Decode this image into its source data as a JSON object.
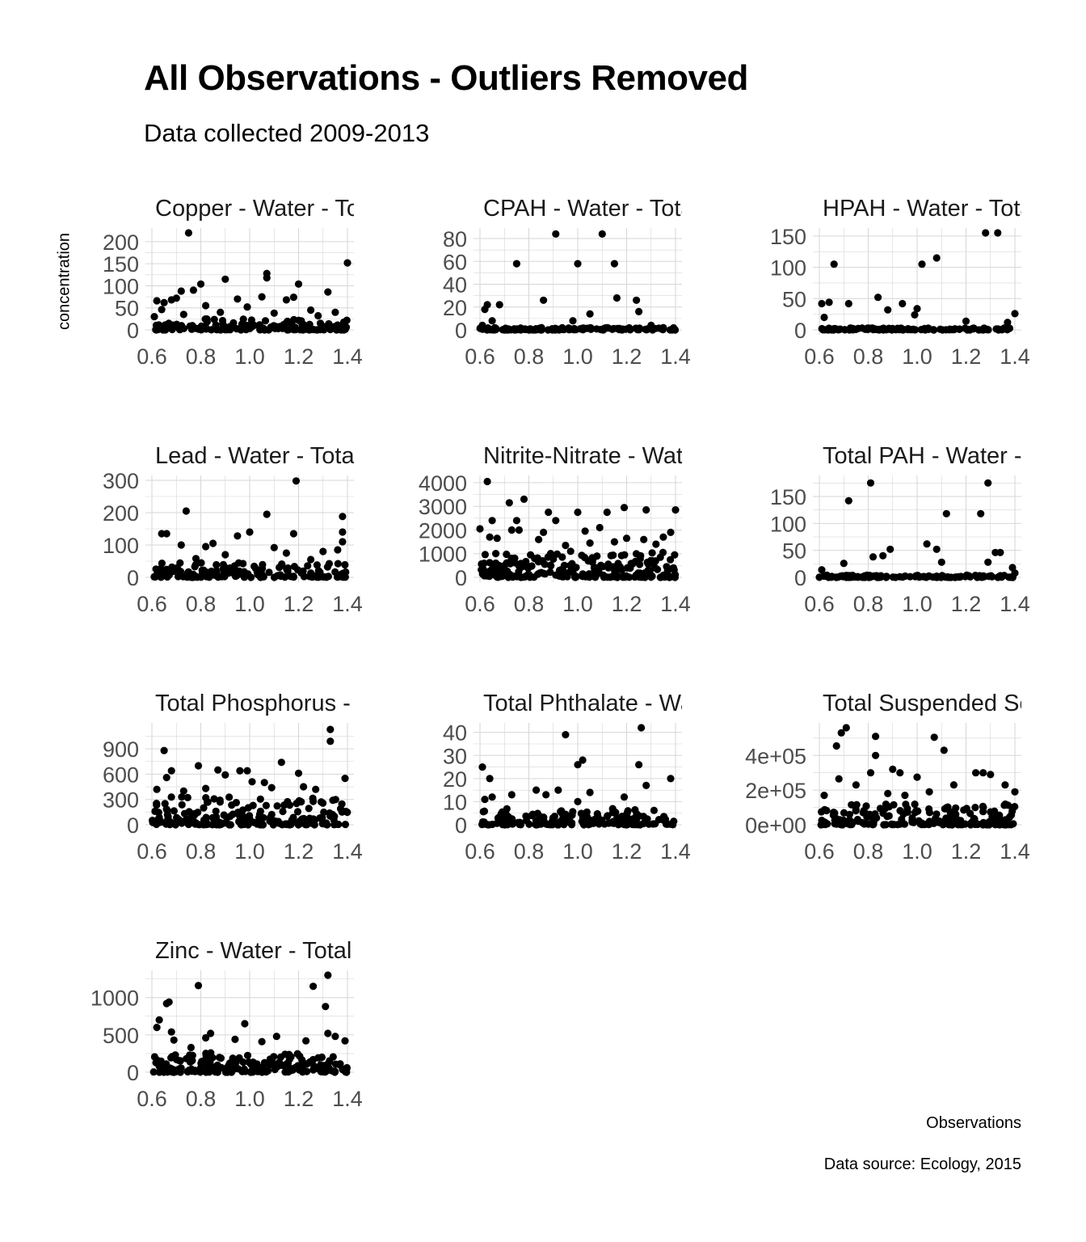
{
  "title": "All Observations - Outliers Removed",
  "subtitle": "Data collected 2009-2013",
  "caption": "Data source: Ecology, 2015",
  "chart_data": {
    "type": "scatter",
    "layout": "faceted 3-column grid",
    "xlabel": "Observations",
    "ylabel": "concentration",
    "grid": true,
    "point_color": "#000000",
    "grid_color": "#d6d6d6",
    "x_ticks": [
      "0.6",
      "0.8",
      "1.0",
      "1.2",
      "1.4"
    ],
    "xlim": [
      0.6,
      1.4
    ],
    "facets": [
      {
        "strip": "Copper - Water - Tot",
        "ylim": [
          0,
          220
        ],
        "y_ticks": [
          0,
          50,
          100,
          150,
          200
        ],
        "y_tick_labels": [
          "0",
          "50",
          "100",
          "150",
          "200"
        ],
        "points": [
          [
            0.75,
            220
          ],
          [
            1.4,
            152
          ],
          [
            1.07,
            128
          ],
          [
            1.07,
            118
          ],
          [
            0.9,
            115
          ],
          [
            0.8,
            104
          ],
          [
            1.2,
            104
          ],
          [
            1.32,
            86
          ],
          [
            0.72,
            88
          ],
          [
            0.77,
            90
          ],
          [
            0.62,
            66
          ],
          [
            0.65,
            62
          ],
          [
            0.68,
            68
          ],
          [
            0.7,
            72
          ],
          [
            0.82,
            55
          ],
          [
            0.95,
            70
          ],
          [
            1.05,
            75
          ],
          [
            1.15,
            68
          ],
          [
            1.18,
            74
          ],
          [
            0.64,
            46
          ],
          [
            0.88,
            40
          ],
          [
            0.99,
            52
          ],
          [
            1.25,
            45
          ],
          [
            1.35,
            40
          ],
          [
            0.61,
            30
          ],
          [
            0.73,
            35
          ],
          [
            1.1,
            38
          ],
          [
            1.28,
            32
          ]
        ],
        "base_max": 25,
        "base_n": 140,
        "seed": 11
      },
      {
        "strip": "CPAH - Water - Tota",
        "ylim": [
          0,
          85
        ],
        "y_ticks": [
          0,
          20,
          40,
          60,
          80
        ],
        "y_tick_labels": [
          "0",
          "20",
          "40",
          "60",
          "80"
        ],
        "points": [
          [
            0.91,
            84
          ],
          [
            1.1,
            84
          ],
          [
            0.75,
            58
          ],
          [
            1.0,
            58
          ],
          [
            1.15,
            58
          ],
          [
            1.24,
            26
          ],
          [
            1.25,
            16
          ],
          [
            1.16,
            28
          ],
          [
            0.86,
            26
          ],
          [
            0.62,
            18
          ],
          [
            0.63,
            22
          ],
          [
            0.68,
            22
          ],
          [
            0.65,
            8
          ],
          [
            0.61,
            4
          ],
          [
            0.98,
            8
          ],
          [
            1.05,
            14
          ],
          [
            1.3,
            4
          ],
          [
            1.35,
            2
          ]
        ],
        "base_max": 2,
        "base_n": 120,
        "seed": 23
      },
      {
        "strip": "HPAH - Water - Tota",
        "ylim": [
          0,
          155
        ],
        "y_ticks": [
          0,
          50,
          100,
          150
        ],
        "y_tick_labels": [
          "0",
          "50",
          "100",
          "150"
        ],
        "points": [
          [
            1.28,
            155
          ],
          [
            1.33,
            155
          ],
          [
            1.08,
            115
          ],
          [
            1.02,
            105
          ],
          [
            0.66,
            105
          ],
          [
            0.61,
            42
          ],
          [
            0.64,
            44
          ],
          [
            0.72,
            42
          ],
          [
            0.84,
            52
          ],
          [
            0.94,
            42
          ],
          [
            0.99,
            24
          ],
          [
            1.0,
            34
          ],
          [
            0.88,
            32
          ],
          [
            0.62,
            20
          ],
          [
            1.4,
            26
          ],
          [
            1.37,
            12
          ],
          [
            1.2,
            14
          ]
        ],
        "base_max": 3,
        "base_n": 120,
        "seed": 37
      },
      {
        "strip": "Lead - Water - Total",
        "ylim": [
          0,
          300
        ],
        "y_ticks": [
          0,
          100,
          200,
          300
        ],
        "y_tick_labels": [
          "0",
          "100",
          "200",
          "300"
        ],
        "points": [
          [
            1.19,
            298
          ],
          [
            0.74,
            205
          ],
          [
            1.07,
            195
          ],
          [
            1.38,
            188
          ],
          [
            0.64,
            135
          ],
          [
            0.66,
            135
          ],
          [
            1.18,
            135
          ],
          [
            1.38,
            140
          ],
          [
            1.38,
            110
          ],
          [
            0.95,
            128
          ],
          [
            1.0,
            140
          ],
          [
            0.82,
            95
          ],
          [
            0.85,
            105
          ],
          [
            1.1,
            92
          ],
          [
            0.72,
            100
          ],
          [
            1.3,
            80
          ],
          [
            1.36,
            85
          ],
          [
            0.9,
            70
          ],
          [
            1.15,
            75
          ],
          [
            0.78,
            58
          ],
          [
            1.25,
            55
          ]
        ],
        "base_max": 45,
        "base_n": 150,
        "seed": 41
      },
      {
        "strip": "Nitrite-Nitrate - Wate",
        "ylim": [
          0,
          4100
        ],
        "y_ticks": [
          0,
          1000,
          2000,
          3000,
          4000
        ],
        "y_tick_labels": [
          "0",
          "1000",
          "2000",
          "3000",
          "4000"
        ],
        "points": [
          [
            0.63,
            4050
          ],
          [
            0.78,
            3300
          ],
          [
            0.72,
            3150
          ],
          [
            1.19,
            2950
          ],
          [
            1.28,
            2850
          ],
          [
            1.4,
            2850
          ],
          [
            0.88,
            2750
          ],
          [
            1.0,
            2750
          ],
          [
            1.12,
            2750
          ],
          [
            0.65,
            2400
          ],
          [
            0.75,
            2400
          ],
          [
            0.91,
            2400
          ],
          [
            0.6,
            2050
          ],
          [
            0.73,
            2000
          ],
          [
            0.76,
            2000
          ],
          [
            0.86,
            1900
          ],
          [
            1.03,
            1950
          ],
          [
            1.09,
            2100
          ],
          [
            1.2,
            1650
          ],
          [
            1.27,
            1600
          ],
          [
            1.35,
            1700
          ],
          [
            1.38,
            1900
          ],
          [
            0.64,
            1700
          ],
          [
            0.67,
            1650
          ],
          [
            0.84,
            1600
          ],
          [
            0.95,
            1350
          ],
          [
            1.05,
            1450
          ],
          [
            1.15,
            1500
          ],
          [
            1.32,
            1400
          ]
        ],
        "base_max": 1100,
        "base_n": 220,
        "seed": 53
      },
      {
        "strip": "Total PAH - Water - ",
        "ylim": [
          0,
          180
        ],
        "y_ticks": [
          0,
          50,
          100,
          150
        ],
        "y_tick_labels": [
          "0",
          "50",
          "100",
          "150"
        ],
        "points": [
          [
            0.81,
            175
          ],
          [
            1.29,
            175
          ],
          [
            0.72,
            142
          ],
          [
            1.12,
            118
          ],
          [
            1.26,
            118
          ],
          [
            1.04,
            62
          ],
          [
            1.08,
            52
          ],
          [
            0.89,
            52
          ],
          [
            0.82,
            38
          ],
          [
            0.86,
            40
          ],
          [
            1.32,
            46
          ],
          [
            1.34,
            46
          ],
          [
            1.29,
            28
          ],
          [
            1.1,
            28
          ],
          [
            0.7,
            26
          ],
          [
            0.61,
            14
          ],
          [
            1.39,
            18
          ],
          [
            1.4,
            8
          ]
        ],
        "base_max": 4,
        "base_n": 120,
        "seed": 67
      },
      {
        "strip": "Total Phosphorus - W",
        "ylim": [
          0,
          1150
        ],
        "y_ticks": [
          0,
          300,
          600,
          900
        ],
        "y_tick_labels": [
          "0",
          "300",
          "600",
          "900"
        ],
        "points": [
          [
            1.33,
            1130
          ],
          [
            1.33,
            990
          ],
          [
            0.65,
            880
          ],
          [
            1.13,
            740
          ],
          [
            0.79,
            700
          ],
          [
            0.68,
            640
          ],
          [
            0.87,
            650
          ],
          [
            0.96,
            640
          ],
          [
            0.99,
            640
          ],
          [
            0.9,
            590
          ],
          [
            0.66,
            560
          ],
          [
            1.2,
            610
          ],
          [
            1.39,
            550
          ],
          [
            1.01,
            510
          ],
          [
            1.06,
            500
          ],
          [
            0.62,
            420
          ],
          [
            0.73,
            400
          ],
          [
            0.82,
            430
          ],
          [
            1.09,
            440
          ],
          [
            1.22,
            450
          ],
          [
            1.27,
            420
          ]
        ],
        "base_max": 330,
        "base_n": 200,
        "seed": 79
      },
      {
        "strip": "Total Phthalate - Wa",
        "ylim": [
          0,
          42
        ],
        "y_ticks": [
          0,
          10,
          20,
          30,
          40
        ],
        "y_tick_labels": [
          "0",
          "10",
          "20",
          "30",
          "40"
        ],
        "points": [
          [
            1.26,
            42
          ],
          [
            0.95,
            39
          ],
          [
            1.02,
            28
          ],
          [
            1.0,
            26
          ],
          [
            1.25,
            26
          ],
          [
            0.61,
            25
          ],
          [
            0.64,
            20
          ],
          [
            1.38,
            20
          ],
          [
            1.28,
            17
          ],
          [
            0.92,
            15
          ],
          [
            0.83,
            15
          ],
          [
            0.65,
            12
          ],
          [
            1.05,
            14
          ],
          [
            0.73,
            13
          ],
          [
            1.19,
            12
          ],
          [
            0.87,
            13
          ],
          [
            0.62,
            11
          ],
          [
            1.0,
            10
          ]
        ],
        "base_max": 7,
        "base_n": 160,
        "seed": 83
      },
      {
        "strip": "Total Suspended So",
        "ylim": [
          0,
          560000
        ],
        "y_ticks": [
          0,
          200000,
          400000
        ],
        "y_tick_labels": [
          "0e+00",
          "2e+05",
          "4e+05"
        ],
        "points": [
          [
            0.71,
            560000
          ],
          [
            0.69,
            530000
          ],
          [
            0.83,
            510000
          ],
          [
            1.07,
            505000
          ],
          [
            0.67,
            455000
          ],
          [
            1.11,
            430000
          ],
          [
            0.83,
            400000
          ],
          [
            0.81,
            300000
          ],
          [
            0.9,
            320000
          ],
          [
            0.93,
            300000
          ],
          [
            0.68,
            265000
          ],
          [
            1.0,
            275000
          ],
          [
            1.27,
            300000
          ],
          [
            1.24,
            300000
          ],
          [
            1.3,
            290000
          ],
          [
            0.75,
            230000
          ],
          [
            1.15,
            230000
          ],
          [
            1.36,
            230000
          ],
          [
            1.4,
            190000
          ],
          [
            0.95,
            170000
          ],
          [
            1.05,
            190000
          ],
          [
            0.62,
            170000
          ],
          [
            0.88,
            180000
          ]
        ],
        "base_max": 120000,
        "base_n": 190,
        "seed": 97
      },
      {
        "strip": "Zinc - Water - Total",
        "ylim": [
          0,
          1300
        ],
        "y_ticks": [
          0,
          500,
          1000
        ],
        "y_tick_labels": [
          "0",
          "500",
          "1000"
        ],
        "points": [
          [
            1.32,
            1300
          ],
          [
            0.79,
            1160
          ],
          [
            1.26,
            1150
          ],
          [
            0.67,
            940
          ],
          [
            0.66,
            920
          ],
          [
            1.31,
            880
          ],
          [
            0.63,
            700
          ],
          [
            0.62,
            600
          ],
          [
            0.98,
            650
          ],
          [
            0.68,
            540
          ],
          [
            0.84,
            520
          ],
          [
            1.32,
            520
          ],
          [
            1.35,
            480
          ],
          [
            0.69,
            430
          ],
          [
            0.82,
            460
          ],
          [
            0.94,
            440
          ],
          [
            1.11,
            480
          ],
          [
            1.23,
            420
          ],
          [
            1.39,
            420
          ],
          [
            1.05,
            410
          ],
          [
            0.76,
            330
          ]
        ],
        "base_max": 260,
        "base_n": 200,
        "seed": 101
      }
    ]
  }
}
